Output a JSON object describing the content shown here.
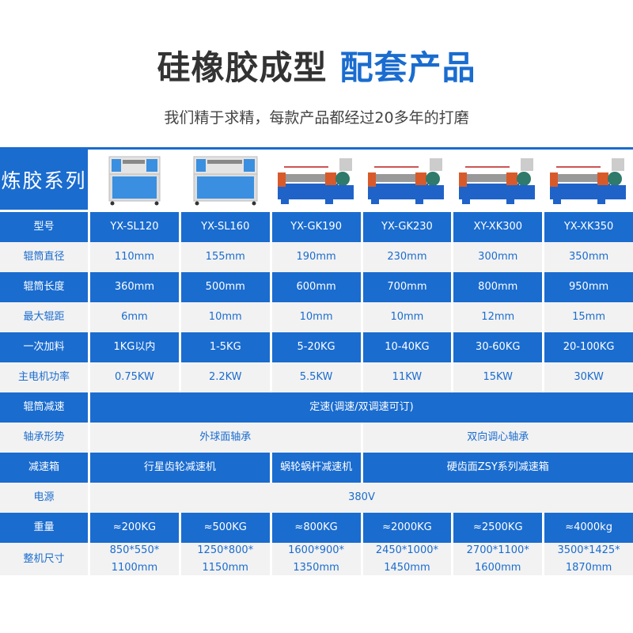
{
  "header": {
    "title_main": "硅橡胶成型",
    "title_accent": "配套产品",
    "subtitle": "我们精于求精，每款产品都经过20多年的打磨"
  },
  "colors": {
    "brand_blue": "#1a6ccf",
    "row_grey": "#f2f2f2",
    "title_dark": "#333333"
  },
  "table": {
    "series_label": "炼胶系列",
    "products": [
      {
        "image": "cabinet-mill-small"
      },
      {
        "image": "cabinet-mill-large"
      },
      {
        "image": "open-mill"
      },
      {
        "image": "open-mill"
      },
      {
        "image": "open-mill"
      },
      {
        "image": "open-mill"
      }
    ],
    "rows": [
      {
        "label": "型号",
        "cells": [
          {
            "text": "YX-SL120"
          },
          {
            "text": "YX-SL160"
          },
          {
            "text": "YX-GK190"
          },
          {
            "text": "YX-GK230"
          },
          {
            "text": "XY-XK300"
          },
          {
            "text": "YX-XK350"
          }
        ]
      },
      {
        "label": "辊筒直径",
        "cells": [
          {
            "text": "110mm"
          },
          {
            "text": "155mm"
          },
          {
            "text": "190mm"
          },
          {
            "text": "230mm"
          },
          {
            "text": "300mm"
          },
          {
            "text": "350mm"
          }
        ]
      },
      {
        "label": "辊筒长度",
        "cells": [
          {
            "text": "360mm"
          },
          {
            "text": "500mm"
          },
          {
            "text": "600mm"
          },
          {
            "text": "700mm"
          },
          {
            "text": "800mm"
          },
          {
            "text": "950mm"
          }
        ]
      },
      {
        "label": "最大辊距",
        "cells": [
          {
            "text": "6mm"
          },
          {
            "text": "10mm"
          },
          {
            "text": "10mm"
          },
          {
            "text": "10mm"
          },
          {
            "text": "12mm"
          },
          {
            "text": "15mm"
          }
        ]
      },
      {
        "label": "一次加料",
        "cells": [
          {
            "text": "1KG以内"
          },
          {
            "text": "1-5KG"
          },
          {
            "text": "5-20KG"
          },
          {
            "text": "10-40KG"
          },
          {
            "text": "30-60KG"
          },
          {
            "text": "20-100KG"
          }
        ]
      },
      {
        "label": "主电机功率",
        "cells": [
          {
            "text": "0.75KW"
          },
          {
            "text": "2.2KW"
          },
          {
            "text": "5.5KW"
          },
          {
            "text": "11KW"
          },
          {
            "text": "15KW"
          },
          {
            "text": "30KW"
          }
        ]
      },
      {
        "label": "辊筒减速",
        "cells": [
          {
            "text": "定速(调速/双调速可订)",
            "span": 6
          }
        ]
      },
      {
        "label": "轴承形势",
        "cells": [
          {
            "text": "外球面轴承",
            "span": 3
          },
          {
            "text": "双向调心轴承",
            "span": 3
          }
        ]
      },
      {
        "label": "减速箱",
        "cells": [
          {
            "text": "行星齿轮减速机",
            "span": 2
          },
          {
            "text": "蜗轮蜗杆减速机",
            "span": 1
          },
          {
            "text": "硬齿面ZSY系列减速箱",
            "span": 3
          }
        ]
      },
      {
        "label": "电源",
        "cells": [
          {
            "text": "380V",
            "span": 6
          }
        ]
      },
      {
        "label": "重量",
        "cells": [
          {
            "text": "≈200KG"
          },
          {
            "text": "≈500KG"
          },
          {
            "text": "≈800KG"
          },
          {
            "text": "≈2000KG"
          },
          {
            "text": "≈2500KG"
          },
          {
            "text": "≈4000kg"
          }
        ]
      },
      {
        "label": "整机尺寸",
        "cells": [
          {
            "text": "850*550*\n1100mm"
          },
          {
            "text": "1250*800*\n1150mm"
          },
          {
            "text": "1600*900*\n1350mm"
          },
          {
            "text": "2450*1000*\n1450mm"
          },
          {
            "text": "2700*1100*\n1600mm"
          },
          {
            "text": "3500*1425*\n1870mm"
          }
        ]
      }
    ]
  }
}
